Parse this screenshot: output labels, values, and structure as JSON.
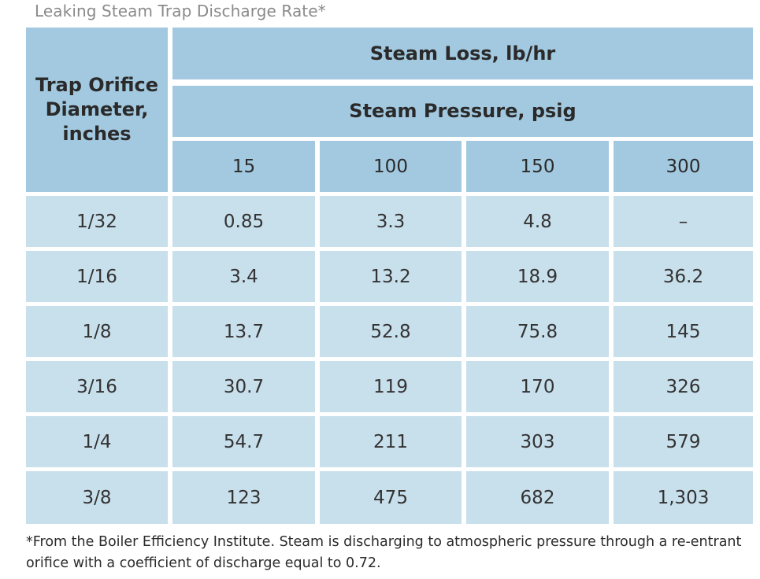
{
  "caption": "Leaking Steam Trap Discharge Rate*",
  "chart_data": {
    "type": "table",
    "row_header": "Trap Orifice Diameter, inches",
    "group_header": "Steam Loss, lb/hr",
    "sub_header": "Steam Pressure, psig",
    "columns": [
      "15",
      "100",
      "150",
      "300"
    ],
    "rows": [
      {
        "diameter": "1/32",
        "values": [
          "0.85",
          "3.3",
          "4.8",
          "–"
        ]
      },
      {
        "diameter": "1/16",
        "values": [
          "3.4",
          "13.2",
          "18.9",
          "36.2"
        ]
      },
      {
        "diameter": "1/8",
        "values": [
          "13.7",
          "52.8",
          "75.8",
          "145"
        ]
      },
      {
        "diameter": "3/16",
        "values": [
          "30.7",
          "119",
          "170",
          "326"
        ]
      },
      {
        "diameter": "1/4",
        "values": [
          "54.7",
          "211",
          "303",
          "579"
        ]
      },
      {
        "diameter": "3/8",
        "values": [
          "123",
          "475",
          "682",
          "1,303"
        ]
      }
    ]
  },
  "footnote": "*From the Boiler Efficiency Institute. Steam is discharging to atmospheric pressure through a re-entrant orifice with a coefficient of discharge equal to 0.72."
}
